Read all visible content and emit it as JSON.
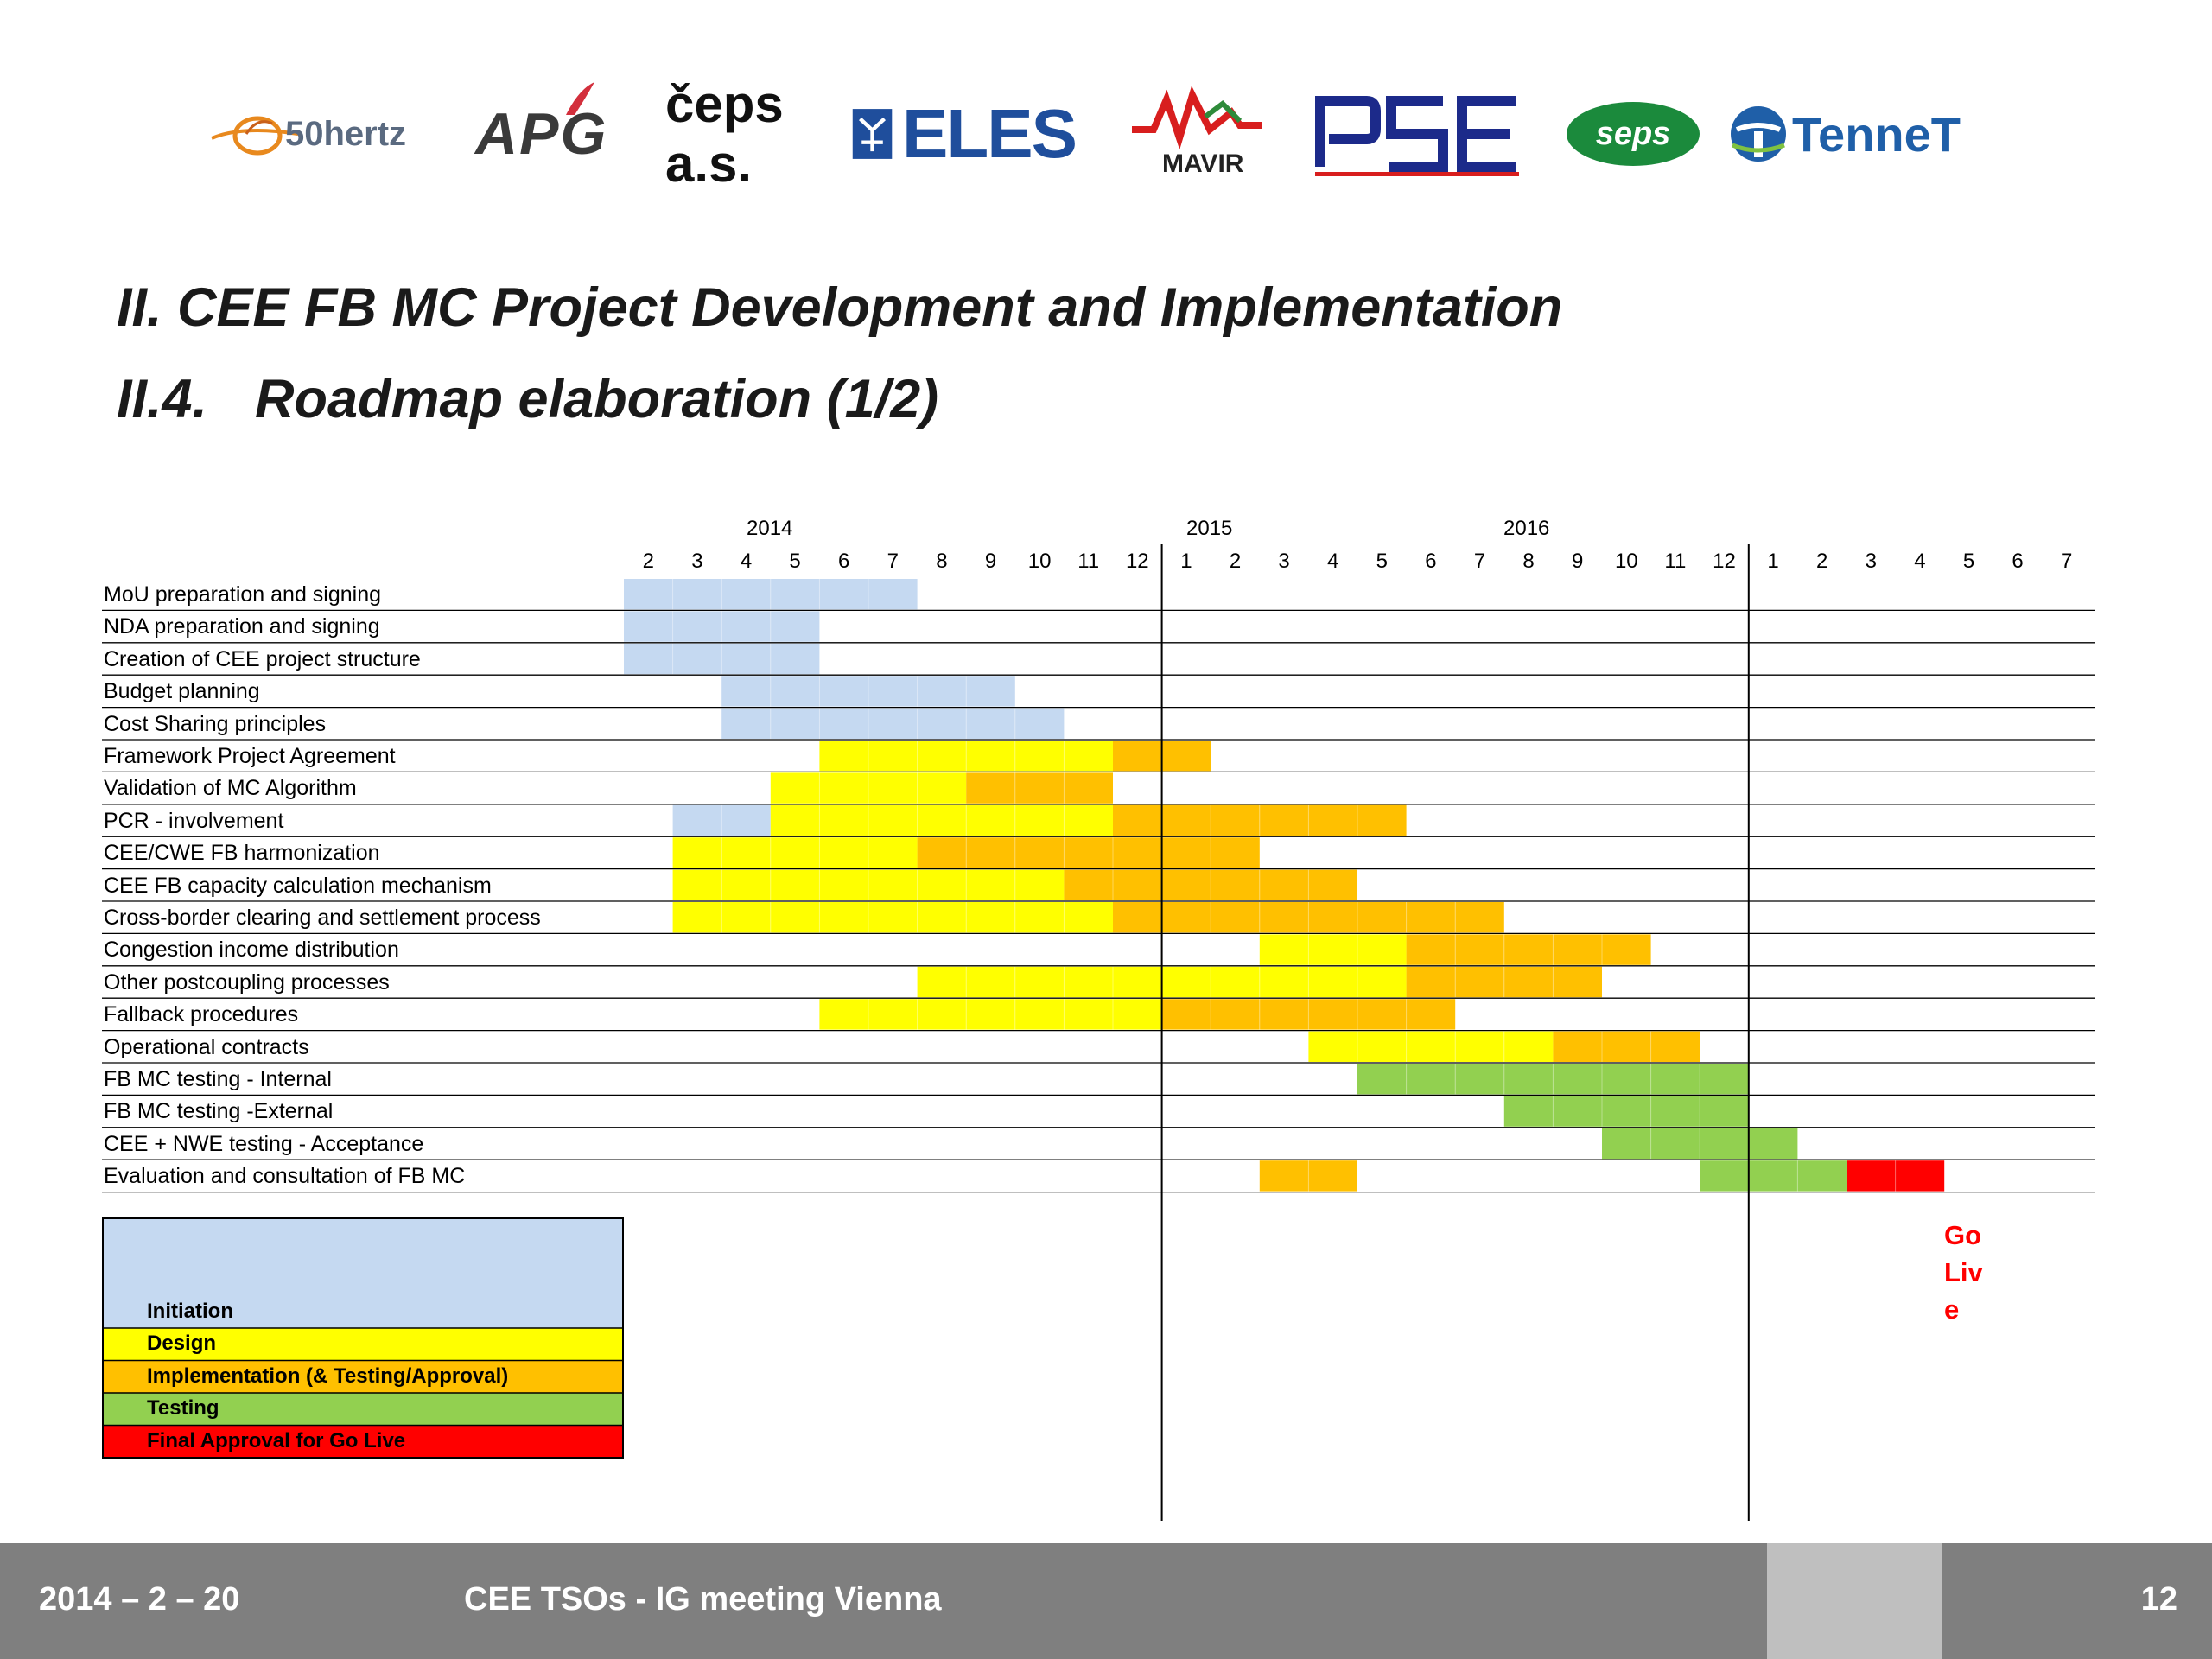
{
  "logos": [
    {
      "text": "50hertz",
      "icon": "50hertz-logo-icon",
      "color": "#e8891e"
    },
    {
      "text": "APG",
      "icon": "apg-logo-icon",
      "color": "#3a3a3a"
    },
    {
      "text": "čeps a.s.",
      "icon": "ceps-logo-icon",
      "color": "#111111"
    },
    {
      "text": "ELES",
      "icon": "eles-logo-icon",
      "color": "#1f4e9c"
    },
    {
      "text": "MAVIR",
      "icon": "mavir-logo-icon",
      "color": "#d81e1e"
    },
    {
      "text": "PSE",
      "icon": "pse-logo-icon",
      "color": "#1c2a8a"
    },
    {
      "text": "SEPS",
      "icon": "seps-logo-icon",
      "color": "#1b8a3c"
    },
    {
      "text": "TenneT",
      "icon": "tennet-logo-icon",
      "color": "#1f5fa8"
    }
  ],
  "title": {
    "line1": "II.  CEE FB MC Project Development and Implementation",
    "line2_num": "II.4.",
    "line2_text": "Roadmap elaboration (1/2)"
  },
  "chart_data": {
    "type": "gantt",
    "years": [
      "2014",
      "2015",
      "2016"
    ],
    "months": [
      "2",
      "3",
      "4",
      "5",
      "6",
      "7",
      "8",
      "9",
      "10",
      "11",
      "12",
      "1",
      "2",
      "3",
      "4",
      "5",
      "6",
      "7",
      "8",
      "9",
      "10",
      "11",
      "12",
      "1",
      "2",
      "3",
      "4",
      "5",
      "6",
      "7"
    ],
    "colors": {
      "initiation": "#c5d9f1",
      "design": "#ffff00",
      "implementation": "#ffc000",
      "testing": "#92d050",
      "approval": "#ff0000"
    },
    "tasks": [
      {
        "name": "MoU preparation and signing",
        "segments": [
          {
            "phase": "initiation",
            "start": 0,
            "end": 6
          }
        ]
      },
      {
        "name": "NDA preparation and signing",
        "segments": [
          {
            "phase": "initiation",
            "start": 0,
            "end": 4
          }
        ]
      },
      {
        "name": "Creation of CEE project structure",
        "segments": [
          {
            "phase": "initiation",
            "start": 0,
            "end": 4
          }
        ]
      },
      {
        "name": "Budget planning",
        "segments": [
          {
            "phase": "initiation",
            "start": 2,
            "end": 8
          }
        ]
      },
      {
        "name": "Cost Sharing principles",
        "segments": [
          {
            "phase": "initiation",
            "start": 2,
            "end": 9
          }
        ]
      },
      {
        "name": "Framework Project Agreement",
        "segments": [
          {
            "phase": "design",
            "start": 4,
            "end": 10
          },
          {
            "phase": "implementation",
            "start": 10,
            "end": 12
          }
        ]
      },
      {
        "name": "Validation of MC Algorithm",
        "segments": [
          {
            "phase": "design",
            "start": 3,
            "end": 7
          },
          {
            "phase": "implementation",
            "start": 7,
            "end": 10
          }
        ]
      },
      {
        "name": "PCR - involvement",
        "segments": [
          {
            "phase": "initiation",
            "start": 1,
            "end": 3
          },
          {
            "phase": "design",
            "start": 3,
            "end": 10
          },
          {
            "phase": "implementation",
            "start": 10,
            "end": 16
          }
        ]
      },
      {
        "name": "CEE/CWE FB harmonization",
        "segments": [
          {
            "phase": "design",
            "start": 1,
            "end": 6
          },
          {
            "phase": "implementation",
            "start": 6,
            "end": 13
          }
        ]
      },
      {
        "name": "CEE FB capacity calculation mechanism",
        "segments": [
          {
            "phase": "design",
            "start": 1,
            "end": 9
          },
          {
            "phase": "implementation",
            "start": 9,
            "end": 15
          }
        ]
      },
      {
        "name": "Cross-border clearing and settlement process",
        "segments": [
          {
            "phase": "design",
            "start": 1,
            "end": 10
          },
          {
            "phase": "implementation",
            "start": 10,
            "end": 18
          }
        ]
      },
      {
        "name": "Congestion income distribution",
        "segments": [
          {
            "phase": "design",
            "start": 13,
            "end": 16
          },
          {
            "phase": "implementation",
            "start": 16,
            "end": 21
          }
        ]
      },
      {
        "name": "Other postcoupling processes",
        "segments": [
          {
            "phase": "design",
            "start": 6,
            "end": 16
          },
          {
            "phase": "implementation",
            "start": 16,
            "end": 20
          }
        ]
      },
      {
        "name": "Fallback procedures",
        "segments": [
          {
            "phase": "design",
            "start": 4,
            "end": 11
          },
          {
            "phase": "implementation",
            "start": 11,
            "end": 17
          }
        ]
      },
      {
        "name": "Operational contracts",
        "segments": [
          {
            "phase": "design",
            "start": 14,
            "end": 19
          },
          {
            "phase": "implementation",
            "start": 19,
            "end": 22
          }
        ]
      },
      {
        "name": "FB MC testing - Internal",
        "segments": [
          {
            "phase": "testing",
            "start": 15,
            "end": 23
          }
        ]
      },
      {
        "name": "FB MC testing -External",
        "segments": [
          {
            "phase": "testing",
            "start": 18,
            "end": 23
          }
        ]
      },
      {
        "name": "CEE + NWE testing - Acceptance",
        "segments": [
          {
            "phase": "testing",
            "start": 20,
            "end": 24
          }
        ]
      },
      {
        "name": "Evaluation and consultation of FB MC",
        "segments": [
          {
            "phase": "implementation",
            "start": 13,
            "end": 15
          },
          {
            "phase": "testing",
            "start": 22,
            "end": 25
          },
          {
            "phase": "approval",
            "start": 25,
            "end": 27
          }
        ]
      }
    ],
    "legend": [
      {
        "label": "Initiation",
        "phase": "initiation"
      },
      {
        "label": "Design",
        "phase": "design"
      },
      {
        "label": "Implementation (& Testing/Approval)",
        "phase": "implementation"
      },
      {
        "label": "Testing",
        "phase": "testing"
      },
      {
        "label": "Final Approval for Go Live",
        "phase": "approval"
      }
    ],
    "annotation": "Go Live"
  },
  "footer": {
    "date": "2014 – 2 – 20",
    "meeting": "CEE TSOs  - IG meeting Vienna",
    "page": "12"
  }
}
